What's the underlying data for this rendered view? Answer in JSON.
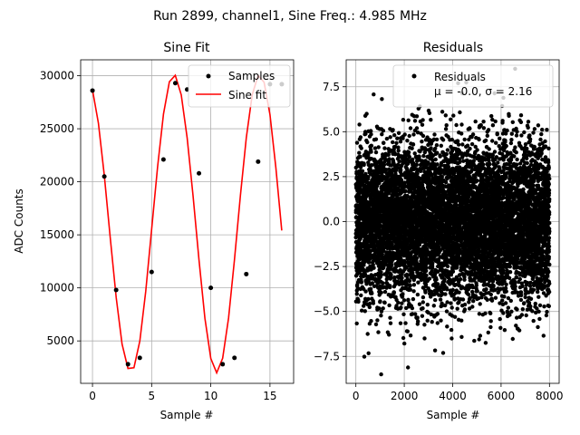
{
  "suptitle": "Run 2899, channel1, Sine Freq.: 4.985 MHz",
  "chart_data": [
    {
      "type": "scatter",
      "title": "Sine Fit",
      "xlabel": "Sample #",
      "ylabel": "ADC Counts",
      "xlim": [
        -1,
        17
      ],
      "ylim": [
        1000,
        31500
      ],
      "xticks": [
        0,
        5,
        10,
        15
      ],
      "xtick_labels": [
        "0",
        "5",
        "10",
        "15"
      ],
      "yticks": [
        5000,
        10000,
        15000,
        20000,
        25000,
        30000
      ],
      "ytick_labels": [
        "5000",
        "10000",
        "15000",
        "20000",
        "25000",
        "30000"
      ],
      "grid": true,
      "legend_position": "top-right",
      "series": [
        {
          "name": "Samples",
          "kind": "points",
          "color": "#000000",
          "x": [
            0,
            1,
            2,
            3,
            4,
            5,
            6,
            7,
            8,
            9,
            10,
            11,
            12,
            13,
            14,
            15,
            16
          ],
          "y": [
            28600,
            20500,
            9800,
            2800,
            3400,
            11500,
            22100,
            29300,
            28700,
            20800,
            10000,
            2800,
            3400,
            11300,
            21900,
            29200,
            29200
          ]
        },
        {
          "name": "Sine fit",
          "kind": "line",
          "color": "#ff0000",
          "x": [
            0,
            0.5,
            1,
            1.5,
            2,
            2.5,
            3,
            3.5,
            4,
            4.5,
            5,
            5.5,
            6,
            6.5,
            7,
            7.5,
            8,
            8.5,
            9,
            9.5,
            10,
            10.5,
            11,
            11.5,
            12,
            12.5,
            13,
            13.5,
            14,
            14.5,
            15,
            15.5,
            16
          ],
          "y": [
            28650,
            25520,
            20600,
            14770,
            9100,
            4700,
            2400,
            2470,
            4990,
            9660,
            15500,
            21410,
            26390,
            29430,
            30040,
            28190,
            24150,
            18700,
            12620,
            7140,
            3350,
            1990,
            3370,
            7150,
            12640,
            18720,
            24170,
            28200,
            30030,
            29390,
            26330,
            21330,
            15410
          ]
        }
      ]
    },
    {
      "type": "scatter",
      "title": "Residuals",
      "xlabel": "Sample #",
      "ylabel": "",
      "xlim": [
        -400,
        8400
      ],
      "ylim": [
        -9.0,
        9.0
      ],
      "xticks": [
        0,
        2000,
        4000,
        6000,
        8000
      ],
      "xtick_labels": [
        "0",
        "2000",
        "4000",
        "6000",
        "8000"
      ],
      "yticks": [
        -7.5,
        -5.0,
        -2.5,
        0.0,
        2.5,
        5.0,
        7.5
      ],
      "ytick_labels": [
        "−7.5",
        "−5.0",
        "−2.5",
        "0.0",
        "2.5",
        "5.0",
        "7.5"
      ],
      "grid": true,
      "legend_position": "top-right",
      "series": [
        {
          "name": "Residuals",
          "kind": "points",
          "color": "#000000",
          "count": 8000,
          "mean": -0.0,
          "sigma": 2.16
        }
      ],
      "legend_note": "μ = -0.0, σ = 2.16"
    }
  ]
}
